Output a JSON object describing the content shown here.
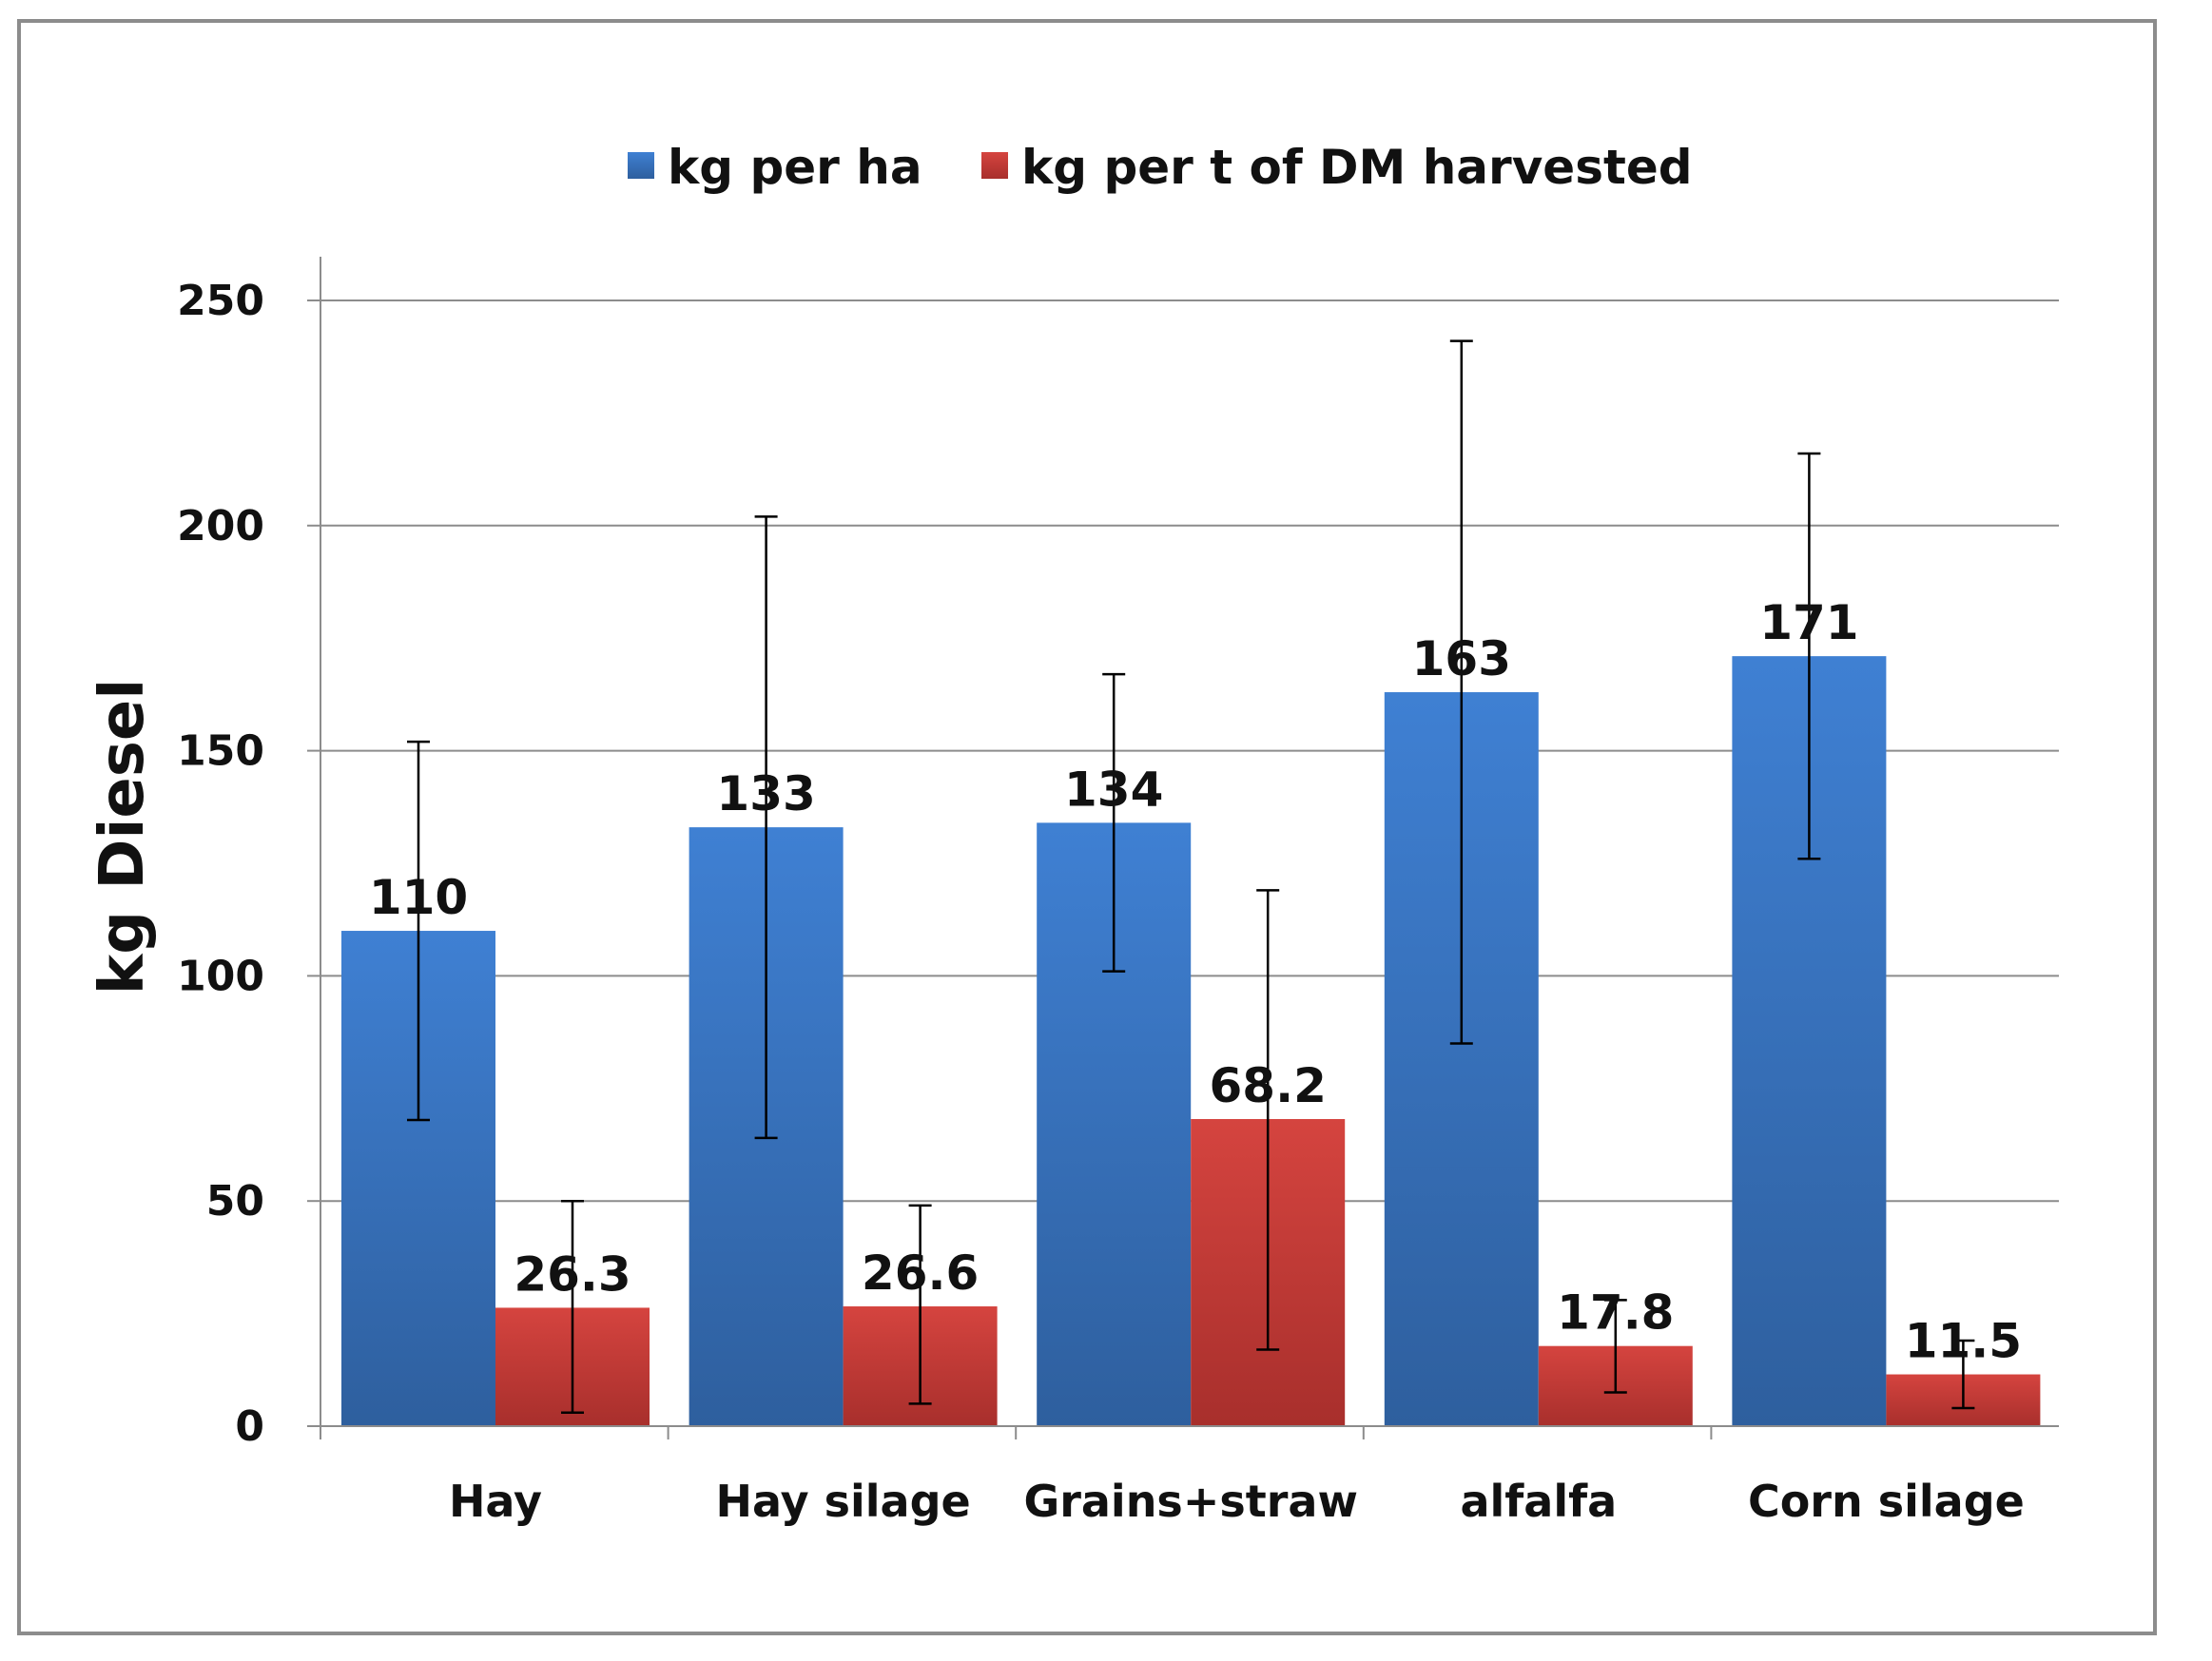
{
  "chart_data": {
    "type": "bar",
    "title": "",
    "xlabel": "",
    "ylabel": "kg Diesel",
    "ylim": [
      0,
      250
    ],
    "yticks": [
      0,
      50,
      100,
      150,
      200,
      250
    ],
    "grid": true,
    "legend_position": "top",
    "categories": [
      "Hay",
      "Hay silage",
      "Grains+straw",
      "alfalfa",
      "Corn silage"
    ],
    "series": [
      {
        "name": "kg per ha",
        "color": "#3a78c9",
        "values": [
          110,
          133,
          134,
          163,
          171
        ],
        "labels": [
          "110",
          "133",
          "134",
          "163",
          "171"
        ],
        "error_low": [
          68,
          64,
          101,
          85,
          126
        ],
        "error_high": [
          152,
          202,
          167,
          241,
          216
        ]
      },
      {
        "name": "kg per t of DM harvested",
        "color": "#c93a36",
        "values": [
          26.3,
          26.6,
          68.2,
          17.8,
          11.5
        ],
        "labels": [
          "26.3",
          "26.6",
          "68.2",
          "17.8",
          "11.5"
        ],
        "error_low": [
          3,
          5,
          17,
          7.5,
          4
        ],
        "error_high": [
          50,
          49,
          119,
          28,
          19
        ]
      }
    ]
  }
}
